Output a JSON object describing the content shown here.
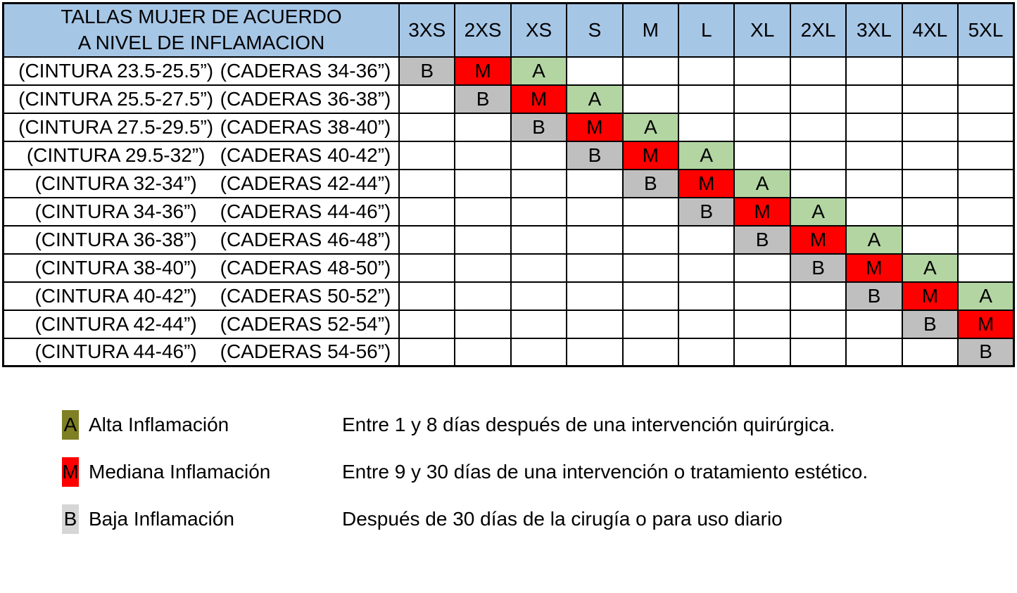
{
  "table": {
    "title_line1": "TALLAS MUJER DE ACUERDO",
    "title_line2": "A NIVEL DE INFLAMACION",
    "sizes": [
      "3XS",
      "2XS",
      "XS",
      "S",
      "M",
      "L",
      "XL",
      "2XL",
      "3XL",
      "4XL",
      "5XL"
    ],
    "rows": [
      {
        "cintura": "(CINTURA 23.5-25.5”)",
        "caderas": "(CADERAS 34-36”)",
        "marks": [
          "B",
          "M",
          "A",
          "",
          "",
          "",
          "",
          "",
          "",
          "",
          ""
        ]
      },
      {
        "cintura": "(CINTURA 25.5-27.5”)",
        "caderas": "(CADERAS 36-38”)",
        "marks": [
          "",
          "B",
          "M",
          "A",
          "",
          "",
          "",
          "",
          "",
          "",
          ""
        ]
      },
      {
        "cintura": "(CINTURA 27.5-29.5”)",
        "caderas": "(CADERAS 38-40”)",
        "marks": [
          "",
          "",
          "B",
          "M",
          "A",
          "",
          "",
          "",
          "",
          "",
          ""
        ]
      },
      {
        "cintura": "(CINTURA 29.5-32”)",
        "caderas": "(CADERAS 40-42”)",
        "marks": [
          "",
          "",
          "",
          "B",
          "M",
          "A",
          "",
          "",
          "",
          "",
          ""
        ]
      },
      {
        "cintura": "(CINTURA 32-34”)",
        "caderas": "(CADERAS 42-44”)",
        "marks": [
          "",
          "",
          "",
          "",
          "B",
          "M",
          "A",
          "",
          "",
          "",
          ""
        ]
      },
      {
        "cintura": "(CINTURA 34-36”)",
        "caderas": "(CADERAS 44-46”)",
        "marks": [
          "",
          "",
          "",
          "",
          "",
          "B",
          "M",
          "A",
          "",
          "",
          ""
        ]
      },
      {
        "cintura": "(CINTURA 36-38”)",
        "caderas": "(CADERAS 46-48”)",
        "marks": [
          "",
          "",
          "",
          "",
          "",
          "",
          "B",
          "M",
          "A",
          "",
          ""
        ]
      },
      {
        "cintura": "(CINTURA 38-40”)",
        "caderas": "(CADERAS 48-50”)",
        "marks": [
          "",
          "",
          "",
          "",
          "",
          "",
          "",
          "B",
          "M",
          "A",
          ""
        ]
      },
      {
        "cintura": "(CINTURA 40-42”)",
        "caderas": "(CADERAS 50-52”)",
        "marks": [
          "",
          "",
          "",
          "",
          "",
          "",
          "",
          "",
          "B",
          "M",
          "A"
        ]
      },
      {
        "cintura": "(CINTURA 42-44”)",
        "caderas": "(CADERAS 52-54”)",
        "marks": [
          "",
          "",
          "",
          "",
          "",
          "",
          "",
          "",
          "",
          "B",
          "M"
        ]
      },
      {
        "cintura": "(CINTURA 44-46”)",
        "caderas": "(CADERAS 54-56”)",
        "marks": [
          "",
          "",
          "",
          "",
          "",
          "",
          "",
          "",
          "",
          "",
          "B"
        ]
      }
    ]
  },
  "legend": {
    "items": [
      {
        "letter": "A",
        "label": "Alta Inflamación",
        "desc": "Entre 1 y 8 días después de una intervención quirúrgica.",
        "swatch_color": "#7f7f23"
      },
      {
        "letter": "M",
        "label": "Mediana Inflamación",
        "desc": "Entre 9 y 30 días de una intervención o tratamiento estético.",
        "swatch_color": "#fe0000"
      },
      {
        "letter": "B",
        "label": "Baja Inflamación",
        "desc": "Después de 30 días de la cirugía o para uso diario",
        "swatch_color": "#d6d6d6"
      }
    ]
  },
  "colors": {
    "header_bg": "#a6c6e6",
    "border": "#000000",
    "mark_A_bg": "#b2d5a2",
    "mark_M_bg": "#fe0000",
    "mark_B_bg": "#bfbfbf"
  }
}
